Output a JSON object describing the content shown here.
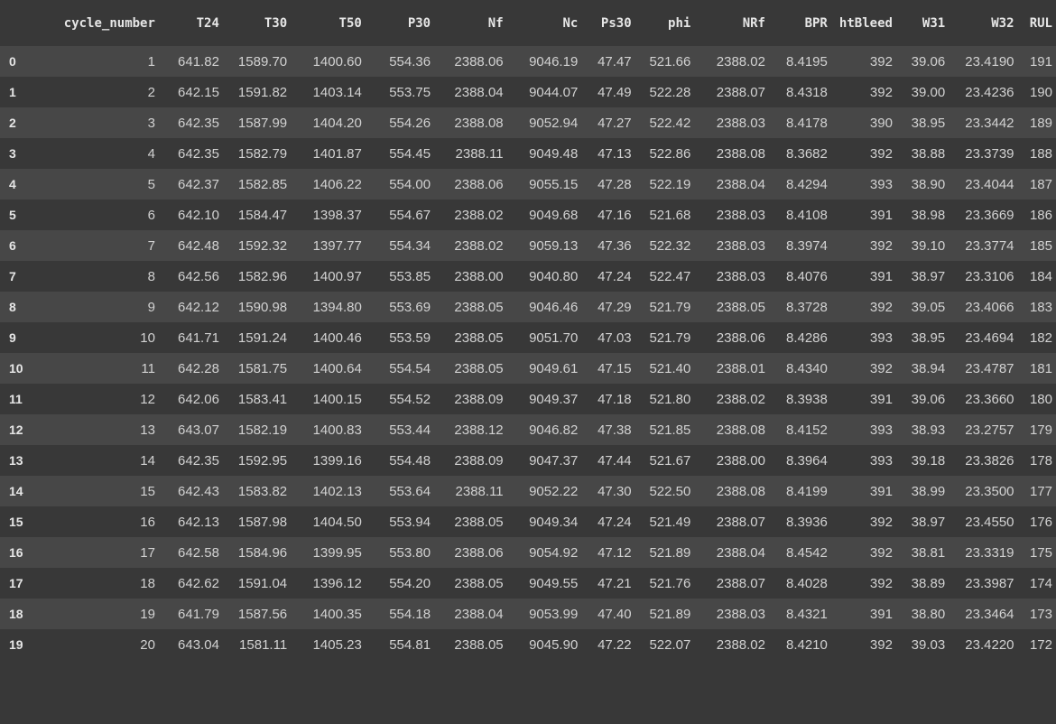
{
  "table": {
    "index_header": "",
    "columns": [
      "cycle_number",
      "T24",
      "T30",
      "T50",
      "P30",
      "Nf",
      "Nc",
      "Ps30",
      "phi",
      "NRf",
      "BPR",
      "htBleed",
      "W31",
      "W32",
      "RUL"
    ],
    "index": [
      "0",
      "1",
      "2",
      "3",
      "4",
      "5",
      "6",
      "7",
      "8",
      "9",
      "10",
      "11",
      "12",
      "13",
      "14",
      "15",
      "16",
      "17",
      "18",
      "19"
    ],
    "rows": [
      [
        "1",
        "641.82",
        "1589.70",
        "1400.60",
        "554.36",
        "2388.06",
        "9046.19",
        "47.47",
        "521.66",
        "2388.02",
        "8.4195",
        "392",
        "39.06",
        "23.4190",
        "191"
      ],
      [
        "2",
        "642.15",
        "1591.82",
        "1403.14",
        "553.75",
        "2388.04",
        "9044.07",
        "47.49",
        "522.28",
        "2388.07",
        "8.4318",
        "392",
        "39.00",
        "23.4236",
        "190"
      ],
      [
        "3",
        "642.35",
        "1587.99",
        "1404.20",
        "554.26",
        "2388.08",
        "9052.94",
        "47.27",
        "522.42",
        "2388.03",
        "8.4178",
        "390",
        "38.95",
        "23.3442",
        "189"
      ],
      [
        "4",
        "642.35",
        "1582.79",
        "1401.87",
        "554.45",
        "2388.11",
        "9049.48",
        "47.13",
        "522.86",
        "2388.08",
        "8.3682",
        "392",
        "38.88",
        "23.3739",
        "188"
      ],
      [
        "5",
        "642.37",
        "1582.85",
        "1406.22",
        "554.00",
        "2388.06",
        "9055.15",
        "47.28",
        "522.19",
        "2388.04",
        "8.4294",
        "393",
        "38.90",
        "23.4044",
        "187"
      ],
      [
        "6",
        "642.10",
        "1584.47",
        "1398.37",
        "554.67",
        "2388.02",
        "9049.68",
        "47.16",
        "521.68",
        "2388.03",
        "8.4108",
        "391",
        "38.98",
        "23.3669",
        "186"
      ],
      [
        "7",
        "642.48",
        "1592.32",
        "1397.77",
        "554.34",
        "2388.02",
        "9059.13",
        "47.36",
        "522.32",
        "2388.03",
        "8.3974",
        "392",
        "39.10",
        "23.3774",
        "185"
      ],
      [
        "8",
        "642.56",
        "1582.96",
        "1400.97",
        "553.85",
        "2388.00",
        "9040.80",
        "47.24",
        "522.47",
        "2388.03",
        "8.4076",
        "391",
        "38.97",
        "23.3106",
        "184"
      ],
      [
        "9",
        "642.12",
        "1590.98",
        "1394.80",
        "553.69",
        "2388.05",
        "9046.46",
        "47.29",
        "521.79",
        "2388.05",
        "8.3728",
        "392",
        "39.05",
        "23.4066",
        "183"
      ],
      [
        "10",
        "641.71",
        "1591.24",
        "1400.46",
        "553.59",
        "2388.05",
        "9051.70",
        "47.03",
        "521.79",
        "2388.06",
        "8.4286",
        "393",
        "38.95",
        "23.4694",
        "182"
      ],
      [
        "11",
        "642.28",
        "1581.75",
        "1400.64",
        "554.54",
        "2388.05",
        "9049.61",
        "47.15",
        "521.40",
        "2388.01",
        "8.4340",
        "392",
        "38.94",
        "23.4787",
        "181"
      ],
      [
        "12",
        "642.06",
        "1583.41",
        "1400.15",
        "554.52",
        "2388.09",
        "9049.37",
        "47.18",
        "521.80",
        "2388.02",
        "8.3938",
        "391",
        "39.06",
        "23.3660",
        "180"
      ],
      [
        "13",
        "643.07",
        "1582.19",
        "1400.83",
        "553.44",
        "2388.12",
        "9046.82",
        "47.38",
        "521.85",
        "2388.08",
        "8.4152",
        "393",
        "38.93",
        "23.2757",
        "179"
      ],
      [
        "14",
        "642.35",
        "1592.95",
        "1399.16",
        "554.48",
        "2388.09",
        "9047.37",
        "47.44",
        "521.67",
        "2388.00",
        "8.3964",
        "393",
        "39.18",
        "23.3826",
        "178"
      ],
      [
        "15",
        "642.43",
        "1583.82",
        "1402.13",
        "553.64",
        "2388.11",
        "9052.22",
        "47.30",
        "522.50",
        "2388.08",
        "8.4199",
        "391",
        "38.99",
        "23.3500",
        "177"
      ],
      [
        "16",
        "642.13",
        "1587.98",
        "1404.50",
        "553.94",
        "2388.05",
        "9049.34",
        "47.24",
        "521.49",
        "2388.07",
        "8.3936",
        "392",
        "38.97",
        "23.4550",
        "176"
      ],
      [
        "17",
        "642.58",
        "1584.96",
        "1399.95",
        "553.80",
        "2388.06",
        "9054.92",
        "47.12",
        "521.89",
        "2388.04",
        "8.4542",
        "392",
        "38.81",
        "23.3319",
        "175"
      ],
      [
        "18",
        "642.62",
        "1591.04",
        "1396.12",
        "554.20",
        "2388.05",
        "9049.55",
        "47.21",
        "521.76",
        "2388.07",
        "8.4028",
        "392",
        "38.89",
        "23.3987",
        "174"
      ],
      [
        "19",
        "641.79",
        "1587.56",
        "1400.35",
        "554.18",
        "2388.04",
        "9053.99",
        "47.40",
        "521.89",
        "2388.03",
        "8.4321",
        "391",
        "38.80",
        "23.3464",
        "173"
      ],
      [
        "20",
        "643.04",
        "1581.11",
        "1405.23",
        "554.81",
        "2388.05",
        "9045.90",
        "47.22",
        "522.07",
        "2388.02",
        "8.4210",
        "392",
        "39.03",
        "23.4220",
        "172"
      ]
    ]
  },
  "colors": {
    "background": "#383838",
    "row_alt": "#474747",
    "text": "#d2d2d2",
    "header_text": "#e6e6e6"
  }
}
